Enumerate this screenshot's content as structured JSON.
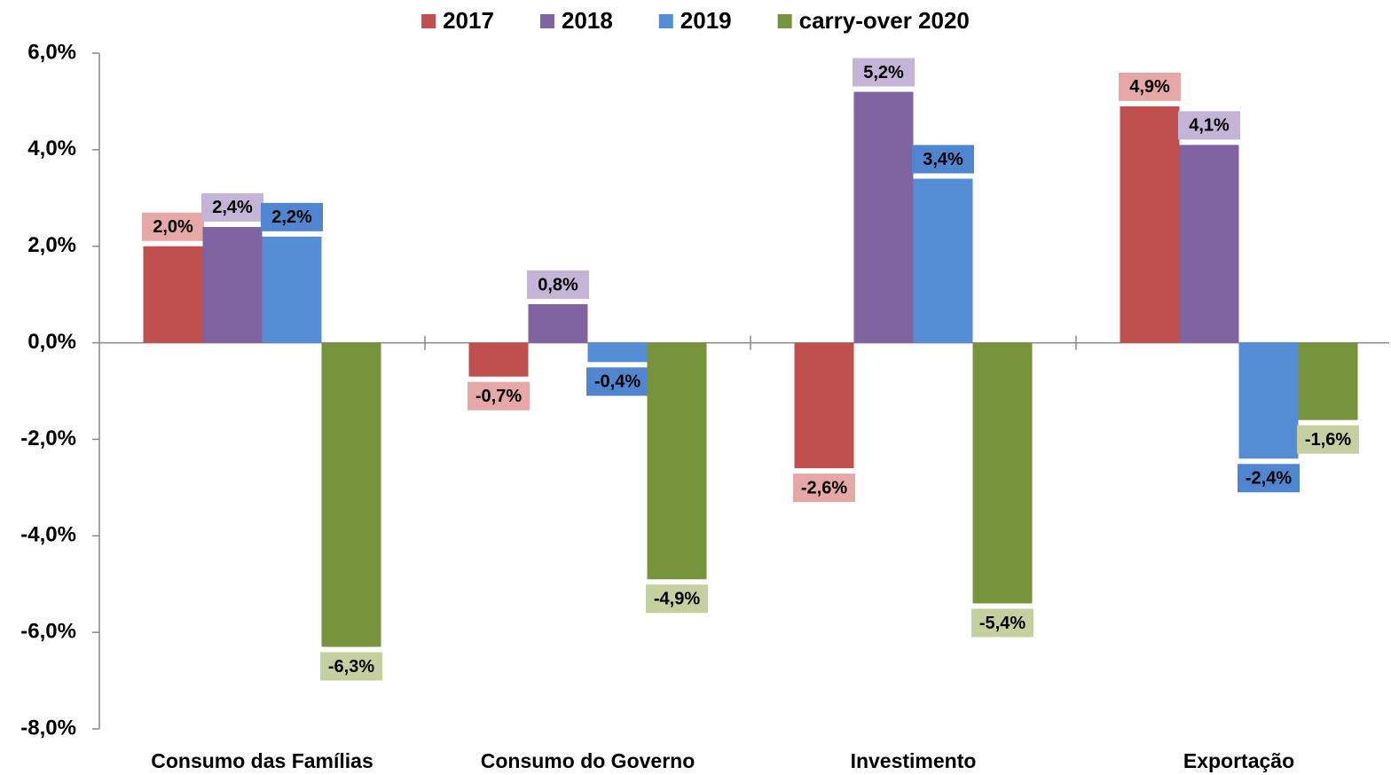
{
  "chart_data": {
    "type": "bar",
    "categories": [
      "Consumo das Famílias",
      "Consumo do Governo",
      "Investimento",
      "Exportação"
    ],
    "series": [
      {
        "name": "2017",
        "color": "#c0504d",
        "label_color": "#e6a8a7",
        "values": [
          2.0,
          -0.7,
          -2.6,
          4.9
        ],
        "value_labels": [
          "2,0%",
          "-0,7%",
          "-2,6%",
          "4,9%"
        ]
      },
      {
        "name": "2018",
        "color": "#8064a2",
        "label_color": "#c4b5d8",
        "values": [
          2.4,
          0.8,
          5.2,
          4.1
        ],
        "value_labels": [
          "2,4%",
          "0,8%",
          "5,2%",
          "4,1%"
        ]
      },
      {
        "name": "2019",
        "color": "#558ed5",
        "label_color": "#4f86cf",
        "values": [
          2.2,
          -0.4,
          3.4,
          -2.4
        ],
        "value_labels": [
          "2,2%",
          "-0,4%",
          "3,4%",
          "-2,4%"
        ]
      },
      {
        "name": "carry-over 2020",
        "color": "#77933c",
        "label_color": "#c4d0a0",
        "values": [
          -6.3,
          -4.9,
          -5.4,
          -1.6
        ],
        "value_labels": [
          "-6,3%",
          "-4,9%",
          "-5,4%",
          "-1,6%"
        ]
      }
    ],
    "ylim": [
      -8,
      6
    ],
    "yticks": [
      {
        "value": -8,
        "label": "-8,0%"
      },
      {
        "value": -6,
        "label": "-6,0%"
      },
      {
        "value": -4,
        "label": "-4,0%"
      },
      {
        "value": -2,
        "label": "-2,0%"
      },
      {
        "value": 0,
        "label": "0,0%"
      },
      {
        "value": 2,
        "label": "2,0%"
      },
      {
        "value": 4,
        "label": "4,0%"
      },
      {
        "value": 6,
        "label": "6,0%"
      }
    ],
    "legend": "top",
    "grid": false
  }
}
